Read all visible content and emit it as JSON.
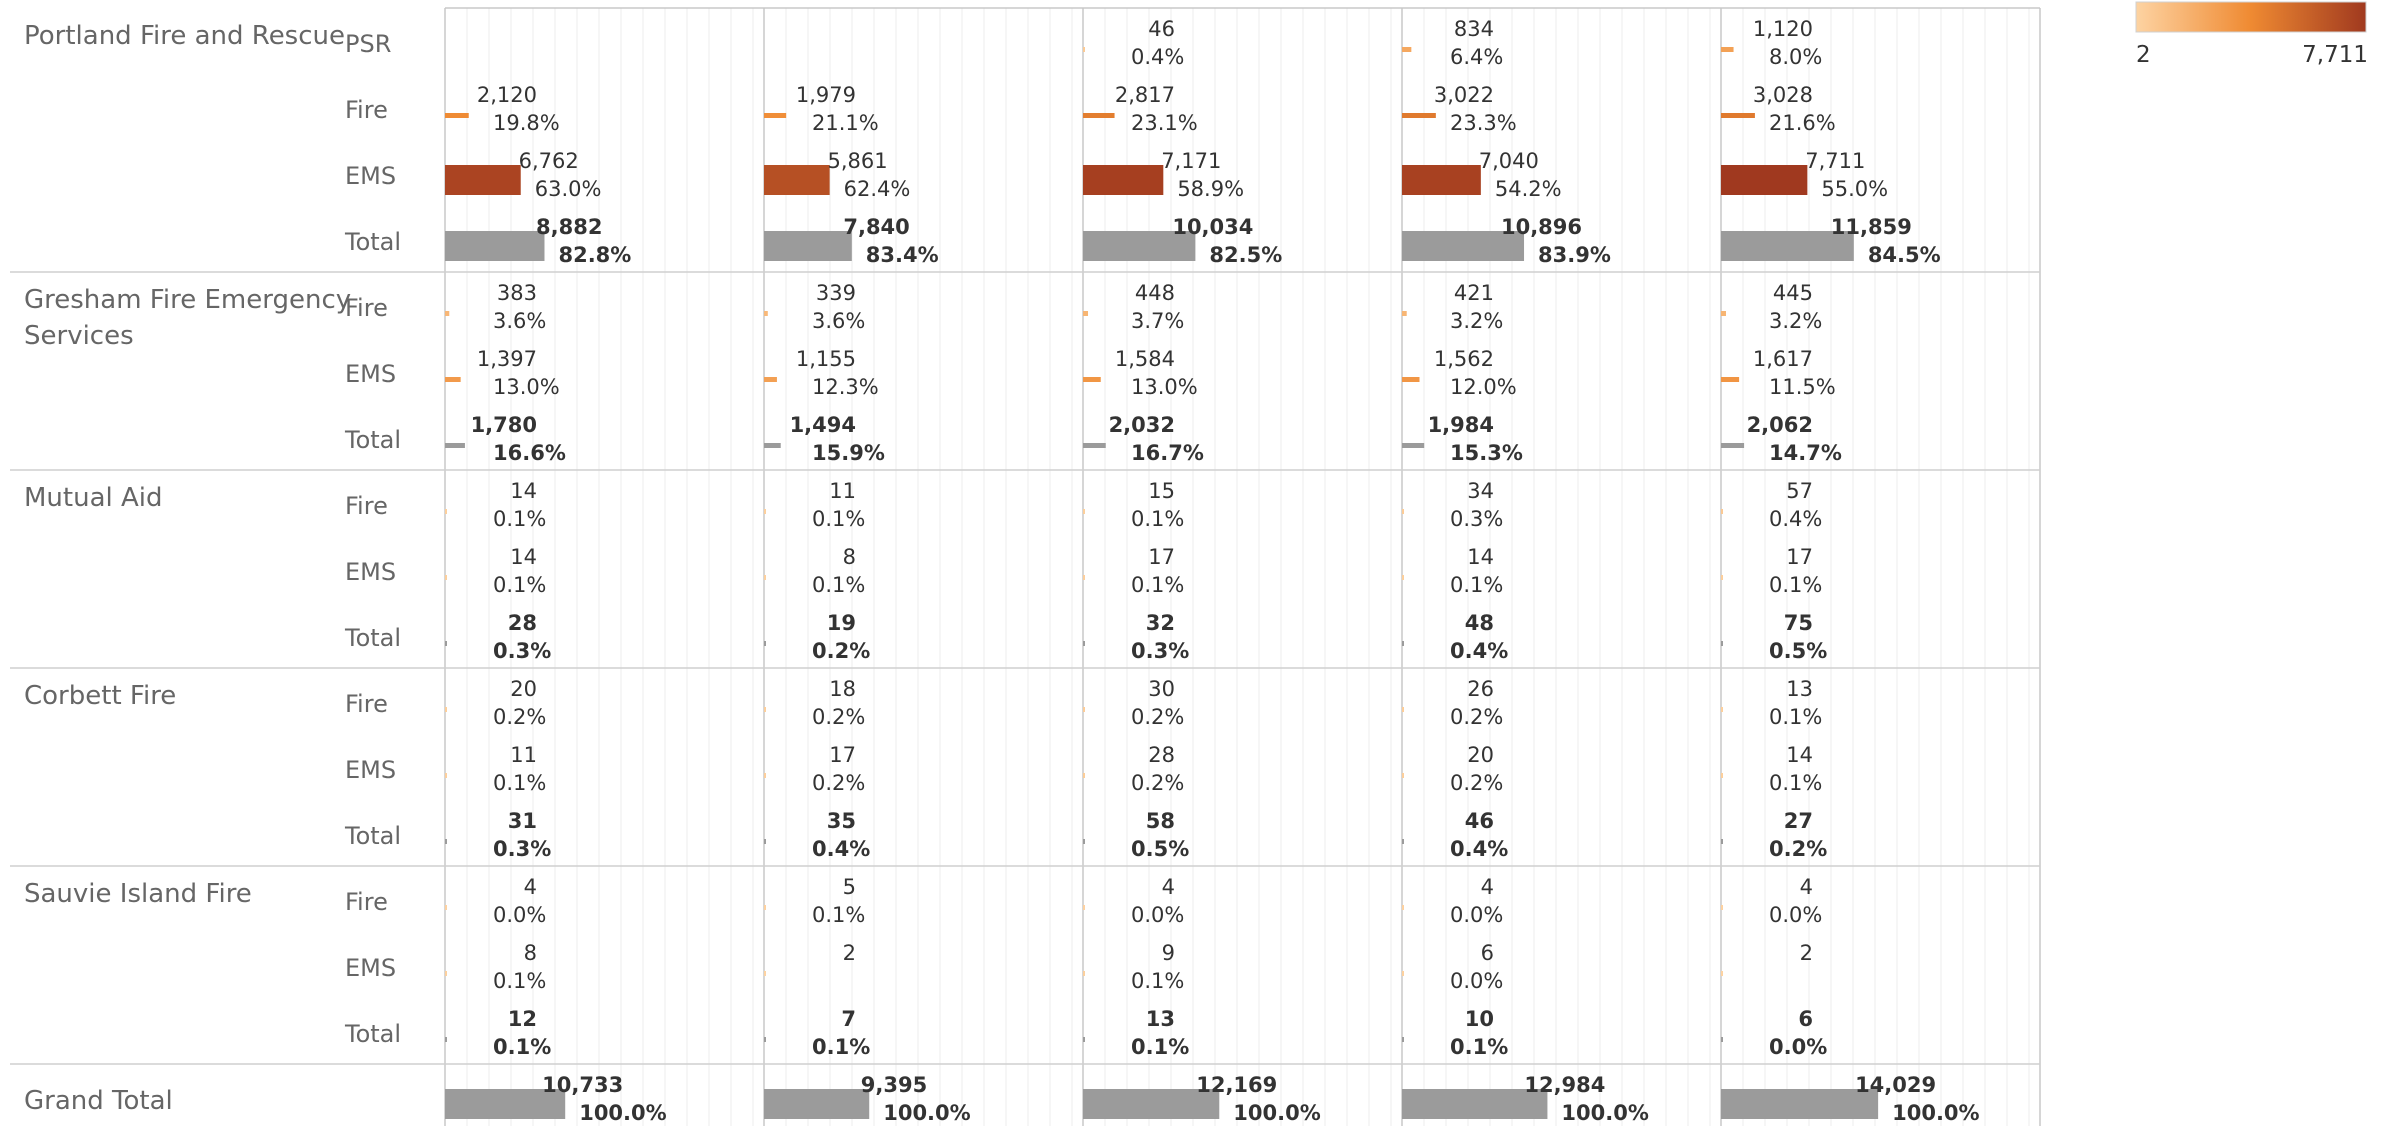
{
  "chart_data": {
    "type": "bar",
    "note": "Tableau-style crosstab of horizontal bars; each column is a panel, each cell shows count and percent of column total",
    "columns": 5,
    "x_max": 13000,
    "legend": {
      "min_label": "2",
      "max_label": "7,711",
      "min": 2,
      "max": 7711,
      "colors": [
        "#fdd3a2",
        "#ef8a32",
        "#a0391f"
      ],
      "placement": "top-right"
    },
    "total_color": "#9b9b9b",
    "groups": [
      {
        "name": "Portland Fire and Rescue",
        "rows": [
          {
            "label": "PSR",
            "kind": "series",
            "cells": [
              null,
              null,
              {
                "value": 46,
                "value_label": "46",
                "pct_label": "0.4%"
              },
              {
                "value": 834,
                "value_label": "834",
                "pct_label": "6.4%"
              },
              {
                "value": 1120,
                "value_label": "1,120",
                "pct_label": "8.0%"
              }
            ]
          },
          {
            "label": "Fire",
            "kind": "series",
            "cells": [
              {
                "value": 2120,
                "value_label": "2,120",
                "pct_label": "19.8%"
              },
              {
                "value": 1979,
                "value_label": "1,979",
                "pct_label": "21.1%"
              },
              {
                "value": 2817,
                "value_label": "2,817",
                "pct_label": "23.1%"
              },
              {
                "value": 3022,
                "value_label": "3,022",
                "pct_label": "23.3%"
              },
              {
                "value": 3028,
                "value_label": "3,028",
                "pct_label": "21.6%"
              }
            ]
          },
          {
            "label": "EMS",
            "kind": "series",
            "cells": [
              {
                "value": 6762,
                "value_label": "6,762",
                "pct_label": "63.0%"
              },
              {
                "value": 5861,
                "value_label": "5,861",
                "pct_label": "62.4%"
              },
              {
                "value": 7171,
                "value_label": "7,171",
                "pct_label": "58.9%"
              },
              {
                "value": 7040,
                "value_label": "7,040",
                "pct_label": "54.2%"
              },
              {
                "value": 7711,
                "value_label": "7,711",
                "pct_label": "55.0%"
              }
            ]
          },
          {
            "label": "Total",
            "kind": "total",
            "cells": [
              {
                "value": 8882,
                "value_label": "8,882",
                "pct_label": "82.8%"
              },
              {
                "value": 7840,
                "value_label": "7,840",
                "pct_label": "83.4%"
              },
              {
                "value": 10034,
                "value_label": "10,034",
                "pct_label": "82.5%"
              },
              {
                "value": 10896,
                "value_label": "10,896",
                "pct_label": "83.9%"
              },
              {
                "value": 11859,
                "value_label": "11,859",
                "pct_label": "84.5%"
              }
            ]
          }
        ]
      },
      {
        "name_lines": [
          "Gresham Fire Emergency",
          "Services"
        ],
        "rows": [
          {
            "label": "Fire",
            "kind": "series",
            "cells": [
              {
                "value": 383,
                "value_label": "383",
                "pct_label": "3.6%"
              },
              {
                "value": 339,
                "value_label": "339",
                "pct_label": "3.6%"
              },
              {
                "value": 448,
                "value_label": "448",
                "pct_label": "3.7%"
              },
              {
                "value": 421,
                "value_label": "421",
                "pct_label": "3.2%"
              },
              {
                "value": 445,
                "value_label": "445",
                "pct_label": "3.2%"
              }
            ]
          },
          {
            "label": "EMS",
            "kind": "series",
            "cells": [
              {
                "value": 1397,
                "value_label": "1,397",
                "pct_label": "13.0%"
              },
              {
                "value": 1155,
                "value_label": "1,155",
                "pct_label": "12.3%"
              },
              {
                "value": 1584,
                "value_label": "1,584",
                "pct_label": "13.0%"
              },
              {
                "value": 1562,
                "value_label": "1,562",
                "pct_label": "12.0%"
              },
              {
                "value": 1617,
                "value_label": "1,617",
                "pct_label": "11.5%"
              }
            ]
          },
          {
            "label": "Total",
            "kind": "total",
            "cells": [
              {
                "value": 1780,
                "value_label": "1,780",
                "pct_label": "16.6%"
              },
              {
                "value": 1494,
                "value_label": "1,494",
                "pct_label": "15.9%"
              },
              {
                "value": 2032,
                "value_label": "2,032",
                "pct_label": "16.7%"
              },
              {
                "value": 1984,
                "value_label": "1,984",
                "pct_label": "15.3%"
              },
              {
                "value": 2062,
                "value_label": "2,062",
                "pct_label": "14.7%"
              }
            ]
          }
        ]
      },
      {
        "name": "Mutual Aid",
        "rows": [
          {
            "label": "Fire",
            "kind": "series",
            "cells": [
              {
                "value": 14,
                "value_label": "14",
                "pct_label": "0.1%"
              },
              {
                "value": 11,
                "value_label": "11",
                "pct_label": "0.1%"
              },
              {
                "value": 15,
                "value_label": "15",
                "pct_label": "0.1%"
              },
              {
                "value": 34,
                "value_label": "34",
                "pct_label": "0.3%"
              },
              {
                "value": 57,
                "value_label": "57",
                "pct_label": "0.4%"
              }
            ]
          },
          {
            "label": "EMS",
            "kind": "series",
            "cells": [
              {
                "value": 14,
                "value_label": "14",
                "pct_label": "0.1%"
              },
              {
                "value": 8,
                "value_label": "8",
                "pct_label": "0.1%"
              },
              {
                "value": 17,
                "value_label": "17",
                "pct_label": "0.1%"
              },
              {
                "value": 14,
                "value_label": "14",
                "pct_label": "0.1%"
              },
              {
                "value": 17,
                "value_label": "17",
                "pct_label": "0.1%"
              }
            ]
          },
          {
            "label": "Total",
            "kind": "total",
            "cells": [
              {
                "value": 28,
                "value_label": "28",
                "pct_label": "0.3%"
              },
              {
                "value": 19,
                "value_label": "19",
                "pct_label": "0.2%"
              },
              {
                "value": 32,
                "value_label": "32",
                "pct_label": "0.3%"
              },
              {
                "value": 48,
                "value_label": "48",
                "pct_label": "0.4%"
              },
              {
                "value": 75,
                "value_label": "75",
                "pct_label": "0.5%"
              }
            ]
          }
        ]
      },
      {
        "name": "Corbett Fire",
        "rows": [
          {
            "label": "Fire",
            "kind": "series",
            "cells": [
              {
                "value": 20,
                "value_label": "20",
                "pct_label": "0.2%"
              },
              {
                "value": 18,
                "value_label": "18",
                "pct_label": "0.2%"
              },
              {
                "value": 30,
                "value_label": "30",
                "pct_label": "0.2%"
              },
              {
                "value": 26,
                "value_label": "26",
                "pct_label": "0.2%"
              },
              {
                "value": 13,
                "value_label": "13",
                "pct_label": "0.1%"
              }
            ]
          },
          {
            "label": "EMS",
            "kind": "series",
            "cells": [
              {
                "value": 11,
                "value_label": "11",
                "pct_label": "0.1%"
              },
              {
                "value": 17,
                "value_label": "17",
                "pct_label": "0.2%"
              },
              {
                "value": 28,
                "value_label": "28",
                "pct_label": "0.2%"
              },
              {
                "value": 20,
                "value_label": "20",
                "pct_label": "0.2%"
              },
              {
                "value": 14,
                "value_label": "14",
                "pct_label": "0.1%"
              }
            ]
          },
          {
            "label": "Total",
            "kind": "total",
            "cells": [
              {
                "value": 31,
                "value_label": "31",
                "pct_label": "0.3%"
              },
              {
                "value": 35,
                "value_label": "35",
                "pct_label": "0.4%"
              },
              {
                "value": 58,
                "value_label": "58",
                "pct_label": "0.5%"
              },
              {
                "value": 46,
                "value_label": "46",
                "pct_label": "0.4%"
              },
              {
                "value": 27,
                "value_label": "27",
                "pct_label": "0.2%"
              }
            ]
          }
        ]
      },
      {
        "name": "Sauvie Island Fire",
        "rows": [
          {
            "label": "Fire",
            "kind": "series",
            "cells": [
              {
                "value": 4,
                "value_label": "4",
                "pct_label": "0.0%"
              },
              {
                "value": 5,
                "value_label": "5",
                "pct_label": "0.1%"
              },
              {
                "value": 4,
                "value_label": "4",
                "pct_label": "0.0%"
              },
              {
                "value": 4,
                "value_label": "4",
                "pct_label": "0.0%"
              },
              {
                "value": 4,
                "value_label": "4",
                "pct_label": "0.0%"
              }
            ]
          },
          {
            "label": "EMS",
            "kind": "series",
            "cells": [
              {
                "value": 8,
                "value_label": "8",
                "pct_label": "0.1%"
              },
              {
                "value": 2,
                "value_label": "2",
                "pct_label": ""
              },
              {
                "value": 9,
                "value_label": "9",
                "pct_label": "0.1%"
              },
              {
                "value": 6,
                "value_label": "6",
                "pct_label": "0.0%"
              },
              {
                "value": 2,
                "value_label": "2",
                "pct_label": ""
              }
            ]
          },
          {
            "label": "Total",
            "kind": "total",
            "cells": [
              {
                "value": 12,
                "value_label": "12",
                "pct_label": "0.1%"
              },
              {
                "value": 7,
                "value_label": "7",
                "pct_label": "0.1%"
              },
              {
                "value": 13,
                "value_label": "13",
                "pct_label": "0.1%"
              },
              {
                "value": 10,
                "value_label": "10",
                "pct_label": "0.1%"
              },
              {
                "value": 6,
                "value_label": "6",
                "pct_label": "0.0%"
              }
            ]
          }
        ]
      }
    ],
    "grand_total": {
      "name": "Grand Total",
      "cells": [
        {
          "value": 10733,
          "value_label": "10,733",
          "pct_label": "100.0%"
        },
        {
          "value": 9395,
          "value_label": "9,395",
          "pct_label": "100.0%"
        },
        {
          "value": 12169,
          "value_label": "12,169",
          "pct_label": "100.0%"
        },
        {
          "value": 12984,
          "value_label": "12,984",
          "pct_label": "100.0%"
        },
        {
          "value": 14029,
          "value_label": "14,029",
          "pct_label": "100.0%"
        }
      ]
    }
  }
}
